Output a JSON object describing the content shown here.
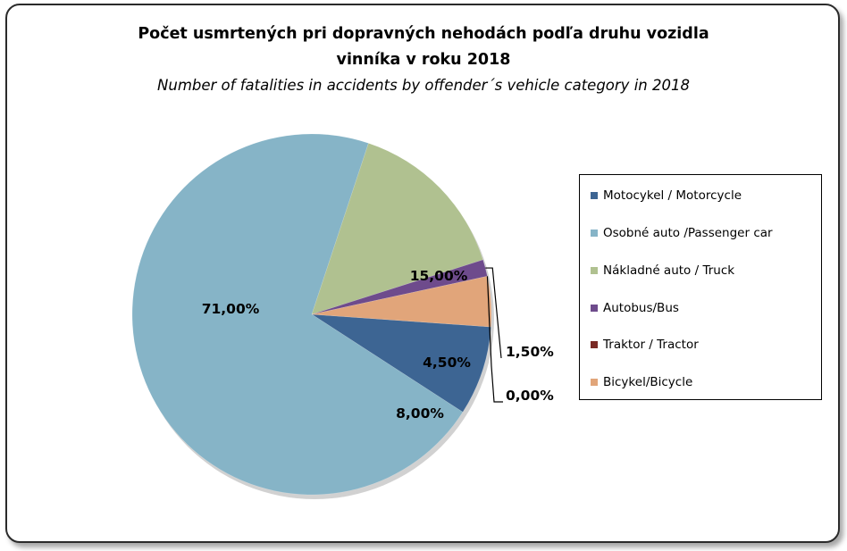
{
  "chart_data": {
    "type": "pie",
    "title": "Počet usmrtených pri dopravných nehodách podľa druhu vozidla",
    "title_line2": "vinníka  v roku 2018",
    "subtitle": "Number of fatalities in accidents by offender´s vehicle category in 2018",
    "slices": [
      {
        "name": "Motocykel / Motorcycle",
        "value": 8.0,
        "label": "8,00%",
        "color": "#3d6593"
      },
      {
        "name": "Osobné auto /Passenger car",
        "value": 71.0,
        "label": "71,00%",
        "color": "#86b4c7"
      },
      {
        "name": "Nákladné auto / Truck",
        "value": 15.0,
        "label": "15,00%",
        "color": "#b0c190"
      },
      {
        "name": "Autobus/Bus",
        "value": 1.5,
        "label": "1,50%",
        "color": "#6e4b8c"
      },
      {
        "name": "Traktor / Tractor",
        "value": 0.0,
        "label": "0,00%",
        "color": "#7a2a25"
      },
      {
        "name": "Bicykel/Bicycle",
        "value": 4.5,
        "label": "4,50%",
        "color": "#e1a57a"
      }
    ],
    "legend_position": "right"
  }
}
